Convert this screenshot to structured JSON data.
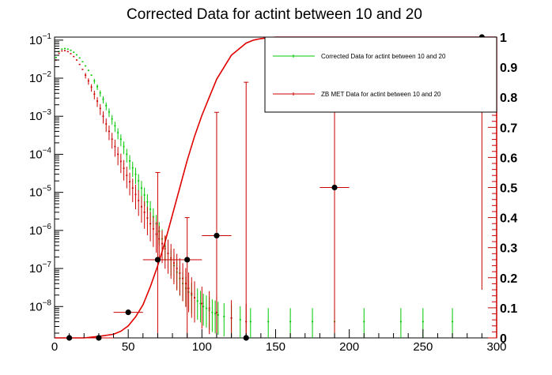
{
  "chart_data": {
    "type": "line",
    "title": "Corrected Data for actint between 10 and 20",
    "xlabel": "",
    "ylabel": "",
    "xlim": [
      0,
      300
    ],
    "ylim": [
      1.5e-09,
      0.12
    ],
    "y_scale": "log",
    "y2lim": [
      0,
      1
    ],
    "grid": false,
    "legend_position": "top-right",
    "x_ticks": [
      "0",
      "50",
      "100",
      "150",
      "200",
      "250",
      "300"
    ],
    "y_ticks": [
      {
        "base": "10",
        "exp": "−1",
        "value": 0.1
      },
      {
        "base": "10",
        "exp": "−2",
        "value": 0.01
      },
      {
        "base": "10",
        "exp": "−3",
        "value": 0.001
      },
      {
        "base": "10",
        "exp": "−4",
        "value": 0.0001
      },
      {
        "base": "10",
        "exp": "−5",
        "value": 1e-05
      },
      {
        "base": "10",
        "exp": "−6",
        "value": 1e-06
      },
      {
        "base": "10",
        "exp": "−7",
        "value": 1e-07
      },
      {
        "base": "10",
        "exp": "−8",
        "value": 1e-08
      }
    ],
    "y2_ticks": [
      "0",
      "0.1",
      "0.2",
      "0.3",
      "0.4",
      "0.5",
      "0.6",
      "0.7",
      "0.8",
      "0.9",
      "1"
    ],
    "series": [
      {
        "name": "Corrected Data for actint between 10 and 20",
        "color": "#00c800",
        "x": [
          1,
          3,
          5,
          7,
          9,
          11,
          13,
          15,
          17,
          19,
          21,
          23,
          25,
          27,
          29,
          31,
          33,
          35,
          37,
          39,
          41,
          43,
          45,
          47,
          49,
          51,
          53,
          55,
          57,
          59,
          61,
          63,
          65,
          67,
          69,
          71,
          73,
          75,
          77,
          79,
          81,
          83,
          85,
          87,
          89,
          91,
          93,
          95,
          97,
          99,
          101,
          103,
          105,
          107,
          109,
          111,
          115,
          120,
          126,
          133,
          145,
          160,
          175,
          190,
          210,
          235,
          250,
          270
        ],
        "values": [
          0.035,
          0.05,
          0.058,
          0.06,
          0.058,
          0.054,
          0.048,
          0.041,
          0.034,
          0.027,
          0.021,
          0.016,
          0.012,
          0.0085,
          0.006,
          0.0041,
          0.0028,
          0.0019,
          0.0013,
          0.00085,
          0.00056,
          0.00037,
          0.00025,
          0.00016,
          0.0001,
          6.7e-05,
          4.4e-05,
          3e-05,
          2e-05,
          1.3e-05,
          8.5e-06,
          5.6e-06,
          3.6e-06,
          2.3e-06,
          1.5e-06,
          9.5e-07,
          6e-07,
          3.8e-07,
          2.5e-07,
          1.7e-07,
          1.2e-07,
          8e-08,
          5.5e-08,
          4e-08,
          3e-08,
          2.4e-08,
          2e-08,
          1.7e-08,
          1.4e-08,
          1.2e-08,
          1e-08,
          9e-09,
          8e-09,
          7e-09,
          6.5e-09,
          6e-09,
          5.5e-09,
          5e-09,
          4.5e-09,
          4e-09,
          4e-09,
          4e-09,
          4e-09,
          4e-09,
          4e-09,
          4e-09,
          4e-09,
          4e-09
        ]
      },
      {
        "name": "ZB MET Data for actint between 10 and 20",
        "color": "#cc0000",
        "x": [
          1,
          3,
          5,
          7,
          9,
          11,
          13,
          15,
          17,
          19,
          21,
          23,
          25,
          27,
          29,
          31,
          33,
          35,
          37,
          39,
          41,
          43,
          45,
          47,
          49,
          51,
          53,
          55,
          57,
          59,
          61,
          63,
          65,
          67,
          69,
          71,
          73,
          75,
          77,
          79,
          81,
          83,
          85,
          87,
          89,
          91,
          93,
          95,
          100,
          105,
          110,
          120,
          130
        ],
        "values": [
          0.03,
          0.045,
          0.052,
          0.053,
          0.05,
          0.044,
          0.037,
          0.03,
          0.023,
          0.017,
          0.012,
          0.0085,
          0.0058,
          0.0038,
          0.0025,
          0.0016,
          0.001,
          0.00063,
          0.0004,
          0.00025,
          0.00016,
          0.0001,
          6.5e-05,
          4.3e-05,
          2.8e-05,
          1.9e-05,
          1.3e-05,
          8.8e-06,
          6.1e-06,
          4.2e-06,
          3e-06,
          2.1e-06,
          1.5e-06,
          1.1e-06,
          8e-07,
          6e-07,
          4.5e-07,
          3.3e-07,
          2.5e-07,
          1.9e-07,
          1.4e-07,
          1e-07,
          7.5e-08,
          5.5e-08,
          4e-08,
          3e-08,
          2.2e-08,
          1.7e-08,
          1.2e-08,
          9e-09,
          7e-09,
          5e-09,
          4e-09
        ]
      },
      {
        "name": "",
        "color": "#e00000",
        "axis": "right",
        "x": [
          0,
          20,
          30,
          40,
          45,
          50,
          55,
          60,
          65,
          70,
          75,
          80,
          85,
          90,
          95,
          100,
          105,
          110,
          115,
          120,
          125,
          130,
          135,
          140,
          145,
          150,
          160,
          170,
          180,
          200,
          300
        ],
        "values": [
          0,
          0.0,
          0.005,
          0.012,
          0.022,
          0.04,
          0.07,
          0.11,
          0.17,
          0.24,
          0.32,
          0.41,
          0.5,
          0.59,
          0.67,
          0.74,
          0.8,
          0.86,
          0.9,
          0.94,
          0.96,
          0.98,
          0.99,
          0.995,
          0.998,
          1.0,
          1.0,
          1.0,
          1.0,
          1.0,
          1.0
        ]
      },
      {
        "name": "",
        "color": "#000000",
        "axis": "right",
        "type": "scatter",
        "points": [
          {
            "x": 10,
            "y": 0.0,
            "xerr": 10,
            "ylow": 0.0,
            "yhigh": 0.0
          },
          {
            "x": 30,
            "y": 0.0,
            "xerr": 10,
            "ylow": 0.0,
            "yhigh": 0.0
          },
          {
            "x": 50,
            "y": 0.085,
            "xerr": 10,
            "ylow": 0.085,
            "yhigh": 0.085
          },
          {
            "x": 70,
            "y": 0.26,
            "xerr": 10,
            "ylow": 0.0,
            "yhigh": 0.55
          },
          {
            "x": 90,
            "y": 0.26,
            "xerr": 10,
            "ylow": 0.0,
            "yhigh": 0.4
          },
          {
            "x": 110,
            "y": 0.34,
            "xerr": 10,
            "ylow": 0.0,
            "yhigh": 0.75
          },
          {
            "x": 130,
            "y": 0.0,
            "xerr": 0,
            "ylow": 0.0,
            "yhigh": 0.85
          },
          {
            "x": 190,
            "y": 0.5,
            "xerr": 10,
            "ylow": 0.0,
            "yhigh": 0.93
          },
          {
            "x": 290,
            "y": 1.0,
            "xerr": 10,
            "ylow": 0.16,
            "yhigh": 1.0
          }
        ]
      }
    ],
    "legend": [
      {
        "label": "Corrected Data for actint between 10 and 20",
        "color": "#00c800"
      },
      {
        "label": "ZB MET Data for actint between 10 and 20",
        "color": "#cc0000"
      }
    ]
  }
}
